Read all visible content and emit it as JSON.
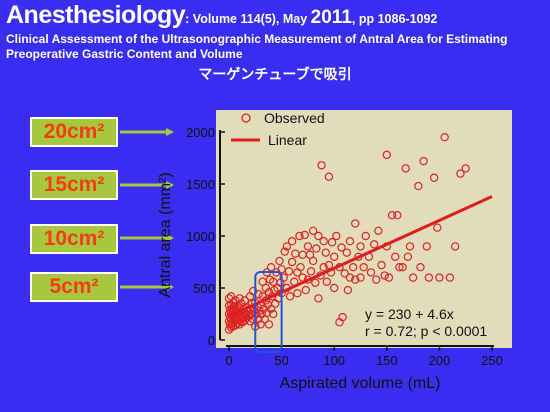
{
  "header": {
    "journal": "Anesthesiology",
    "volume_info": ": Volume 114(5), May ",
    "year": "2011",
    "pages": ", pp 1086-1092",
    "article_title_line1": "Clinical Assessment of the Ultrasonographic Measurement of Antral Area for Estimating",
    "article_title_line2": "Preoperative Gastric Content and Volume",
    "japanese_title": "マーゲンチューブで吸引"
  },
  "area_labels": [
    "20cm²",
    "15cm²",
    "10cm²",
    "5cm²"
  ],
  "colors": {
    "background": "#3a2df2",
    "plot_bg": "#e3dcba",
    "marker": "#dd2222",
    "line": "#dd1e1e",
    "label_box": "#a7c83c",
    "label_text": "#f53c19",
    "highlight": "#1f55d6"
  },
  "chart_data": {
    "type": "scatter",
    "xlabel": "Aspirated volume (mL)",
    "ylabel": "Antral area (mm²)",
    "xlim": [
      0,
      250
    ],
    "ylim": [
      0,
      2000
    ],
    "xticks": [
      0,
      50,
      100,
      150,
      200,
      250
    ],
    "yticks": [
      0,
      500,
      1000,
      1500,
      2000
    ],
    "legend": {
      "position": "top-left",
      "observed": "Observed",
      "linear": "Linear"
    },
    "annotation": {
      "line1": "y = 230 + 4.6x",
      "line2": "r = 0.72; p < 0.0001"
    },
    "highlight_x_range": [
      25,
      50
    ],
    "fit": {
      "intercept": 230,
      "slope": 4.6,
      "x_range": [
        0,
        250
      ]
    },
    "series": [
      {
        "name": "Observed",
        "points": [
          [
            0,
            100
          ],
          [
            0,
            180
          ],
          [
            0,
            250
          ],
          [
            0,
            330
          ],
          [
            0,
            400
          ],
          [
            1,
            150
          ],
          [
            1,
            220
          ],
          [
            1,
            290
          ],
          [
            2,
            120
          ],
          [
            2,
            200
          ],
          [
            2,
            260
          ],
          [
            2,
            340
          ],
          [
            2,
            420
          ],
          [
            3,
            160
          ],
          [
            3,
            230
          ],
          [
            3,
            300
          ],
          [
            4,
            130
          ],
          [
            4,
            210
          ],
          [
            4,
            270
          ],
          [
            4,
            360
          ],
          [
            5,
            180
          ],
          [
            5,
            250
          ],
          [
            5,
            320
          ],
          [
            6,
            140
          ],
          [
            6,
            220
          ],
          [
            6,
            380
          ],
          [
            7,
            200
          ],
          [
            7,
            280
          ],
          [
            8,
            160
          ],
          [
            8,
            240
          ],
          [
            8,
            330
          ],
          [
            9,
            190
          ],
          [
            9,
            260
          ],
          [
            10,
            150
          ],
          [
            10,
            230
          ],
          [
            10,
            310
          ],
          [
            10,
            400
          ],
          [
            11,
            180
          ],
          [
            11,
            270
          ],
          [
            12,
            210
          ],
          [
            12,
            350
          ],
          [
            13,
            170
          ],
          [
            13,
            250
          ],
          [
            14,
            220
          ],
          [
            14,
            300
          ],
          [
            15,
            190
          ],
          [
            15,
            260
          ],
          [
            15,
            380
          ],
          [
            16,
            240
          ],
          [
            17,
            210
          ],
          [
            17,
            310
          ],
          [
            18,
            270
          ],
          [
            19,
            230
          ],
          [
            20,
            180
          ],
          [
            20,
            300
          ],
          [
            20,
            420
          ],
          [
            21,
            250
          ],
          [
            22,
            350
          ],
          [
            23,
            200
          ],
          [
            23,
            470
          ],
          [
            24,
            280
          ],
          [
            25,
            130
          ],
          [
            25,
            360
          ],
          [
            26,
            250
          ],
          [
            27,
            320
          ],
          [
            28,
            200
          ],
          [
            28,
            440
          ],
          [
            29,
            280
          ],
          [
            30,
            340
          ],
          [
            30,
            150
          ],
          [
            31,
            250
          ],
          [
            32,
            420
          ],
          [
            32,
            560
          ],
          [
            33,
            300
          ],
          [
            34,
            200
          ],
          [
            35,
            380
          ],
          [
            35,
            500
          ],
          [
            36,
            260
          ],
          [
            36,
            650
          ],
          [
            37,
            340
          ],
          [
            38,
            460
          ],
          [
            38,
            150
          ],
          [
            39,
            580
          ],
          [
            40,
            300
          ],
          [
            40,
            700
          ],
          [
            41,
            420
          ],
          [
            42,
            250
          ],
          [
            42,
            560
          ],
          [
            43,
            480
          ],
          [
            44,
            350
          ],
          [
            45,
            650
          ],
          [
            46,
            500
          ],
          [
            47,
            400
          ],
          [
            48,
            760
          ],
          [
            49,
            550
          ],
          [
            50,
            450
          ],
          [
            50,
            680
          ],
          [
            52,
            600
          ],
          [
            53,
            850
          ],
          [
            55,
            500
          ],
          [
            55,
            900
          ],
          [
            57,
            660
          ],
          [
            58,
            420
          ],
          [
            60,
            750
          ],
          [
            60,
            950
          ],
          [
            62,
            560
          ],
          [
            63,
            830
          ],
          [
            65,
            650
          ],
          [
            65,
            450
          ],
          [
            67,
            1000
          ],
          [
            68,
            700
          ],
          [
            70,
            600
          ],
          [
            70,
            820
          ],
          [
            72,
            1010
          ],
          [
            73,
            480
          ],
          [
            75,
            580
          ],
          [
            75,
            900
          ],
          [
            77,
            820
          ],
          [
            78,
            660
          ],
          [
            80,
            760
          ],
          [
            80,
            1050
          ],
          [
            82,
            550
          ],
          [
            83,
            880
          ],
          [
            85,
            1000
          ],
          [
            85,
            400
          ],
          [
            87,
            620
          ],
          [
            88,
            1680
          ],
          [
            90,
            700
          ],
          [
            90,
            950
          ],
          [
            92,
            840
          ],
          [
            93,
            560
          ],
          [
            95,
            1570
          ],
          [
            95,
            720
          ],
          [
            97,
            650
          ],
          [
            98,
            940
          ],
          [
            100,
            800
          ],
          [
            100,
            500
          ],
          [
            102,
            1000
          ],
          [
            105,
            700
          ],
          [
            105,
            170
          ],
          [
            107,
            890
          ],
          [
            108,
            220
          ],
          [
            110,
            640
          ],
          [
            112,
            840
          ],
          [
            113,
            480
          ],
          [
            115,
            950
          ],
          [
            115,
            600
          ],
          [
            118,
            700
          ],
          [
            120,
            1120
          ],
          [
            120,
            580
          ],
          [
            123,
            800
          ],
          [
            125,
            900
          ],
          [
            125,
            600
          ],
          [
            128,
            700
          ],
          [
            130,
            1000
          ],
          [
            133,
            800
          ],
          [
            135,
            650
          ],
          [
            138,
            920
          ],
          [
            140,
            580
          ],
          [
            142,
            1050
          ],
          [
            145,
            720
          ],
          [
            148,
            620
          ],
          [
            150,
            1780
          ],
          [
            150,
            900
          ],
          [
            152,
            600
          ],
          [
            155,
            1200
          ],
          [
            158,
            800
          ],
          [
            160,
            1200
          ],
          [
            162,
            700
          ],
          [
            165,
            700
          ],
          [
            168,
            1650
          ],
          [
            170,
            800
          ],
          [
            172,
            900
          ],
          [
            175,
            600
          ],
          [
            180,
            1480
          ],
          [
            182,
            700
          ],
          [
            185,
            1720
          ],
          [
            188,
            900
          ],
          [
            190,
            600
          ],
          [
            195,
            1560
          ],
          [
            198,
            1080
          ],
          [
            200,
            600
          ],
          [
            205,
            1950
          ],
          [
            210,
            600
          ],
          [
            215,
            900
          ],
          [
            220,
            1600
          ],
          [
            225,
            1650
          ]
        ]
      }
    ]
  }
}
